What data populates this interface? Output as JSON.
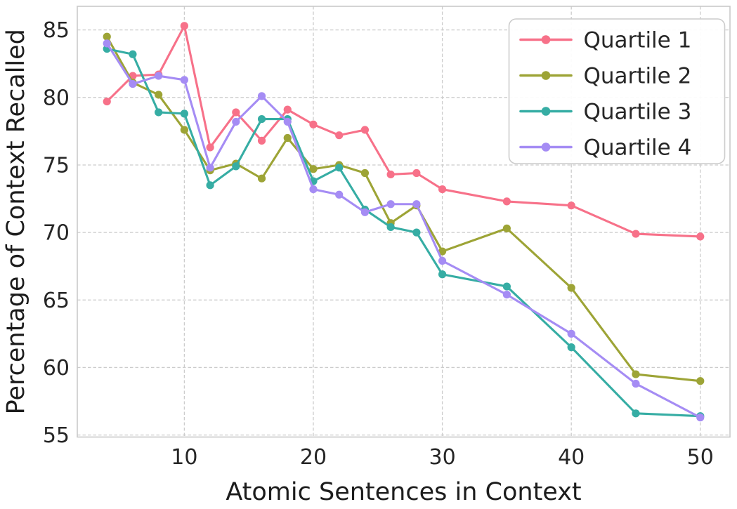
{
  "chart_data": {
    "type": "line",
    "title": "",
    "xlabel": "Atomic Sentences in Context",
    "ylabel": "Percentage of Context Recalled",
    "x": [
      4,
      6,
      8,
      10,
      12,
      14,
      16,
      18,
      20,
      22,
      24,
      26,
      28,
      30,
      35,
      40,
      45,
      50
    ],
    "series": [
      {
        "name": "Quartile 1",
        "color": "#f77189",
        "values": [
          79.7,
          81.6,
          81.7,
          85.3,
          76.3,
          78.9,
          76.8,
          79.1,
          78.0,
          77.2,
          77.6,
          74.3,
          74.4,
          73.2,
          72.3,
          72.0,
          69.9,
          69.7
        ]
      },
      {
        "name": "Quartile 2",
        "color": "#9da436",
        "values": [
          84.5,
          81.1,
          80.2,
          77.6,
          74.6,
          75.1,
          74.0,
          77.0,
          74.7,
          75.0,
          74.4,
          70.7,
          72.0,
          68.6,
          70.3,
          65.9,
          59.5,
          59.0
        ]
      },
      {
        "name": "Quartile 3",
        "color": "#36ada4",
        "values": [
          83.6,
          83.2,
          78.9,
          78.8,
          73.5,
          74.9,
          78.4,
          78.4,
          73.8,
          74.8,
          71.7,
          70.4,
          70.0,
          66.9,
          66.0,
          61.5,
          56.6,
          56.4
        ]
      },
      {
        "name": "Quartile 4",
        "color": "#a58cf4",
        "values": [
          84.0,
          81.0,
          81.6,
          81.3,
          74.8,
          78.2,
          80.1,
          78.2,
          73.2,
          72.8,
          71.5,
          72.1,
          72.1,
          67.9,
          65.4,
          62.5,
          58.8,
          56.3
        ]
      }
    ],
    "xticks": [
      10,
      20,
      30,
      40,
      50
    ],
    "yticks": [
      55,
      60,
      65,
      70,
      75,
      80,
      85
    ],
    "xlim": [
      1.7,
      52.3
    ],
    "ylim": [
      54.85,
      86.75
    ],
    "grid": "dashed-both",
    "legend": {
      "position": "upper-right",
      "labels": [
        "Quartile 1",
        "Quartile 2",
        "Quartile 3",
        "Quartile 4"
      ]
    },
    "style": {
      "grid_color": "#cccccc",
      "spine_color": "#c9c9c9",
      "text_color": "#262626",
      "background": "#ffffff"
    }
  }
}
